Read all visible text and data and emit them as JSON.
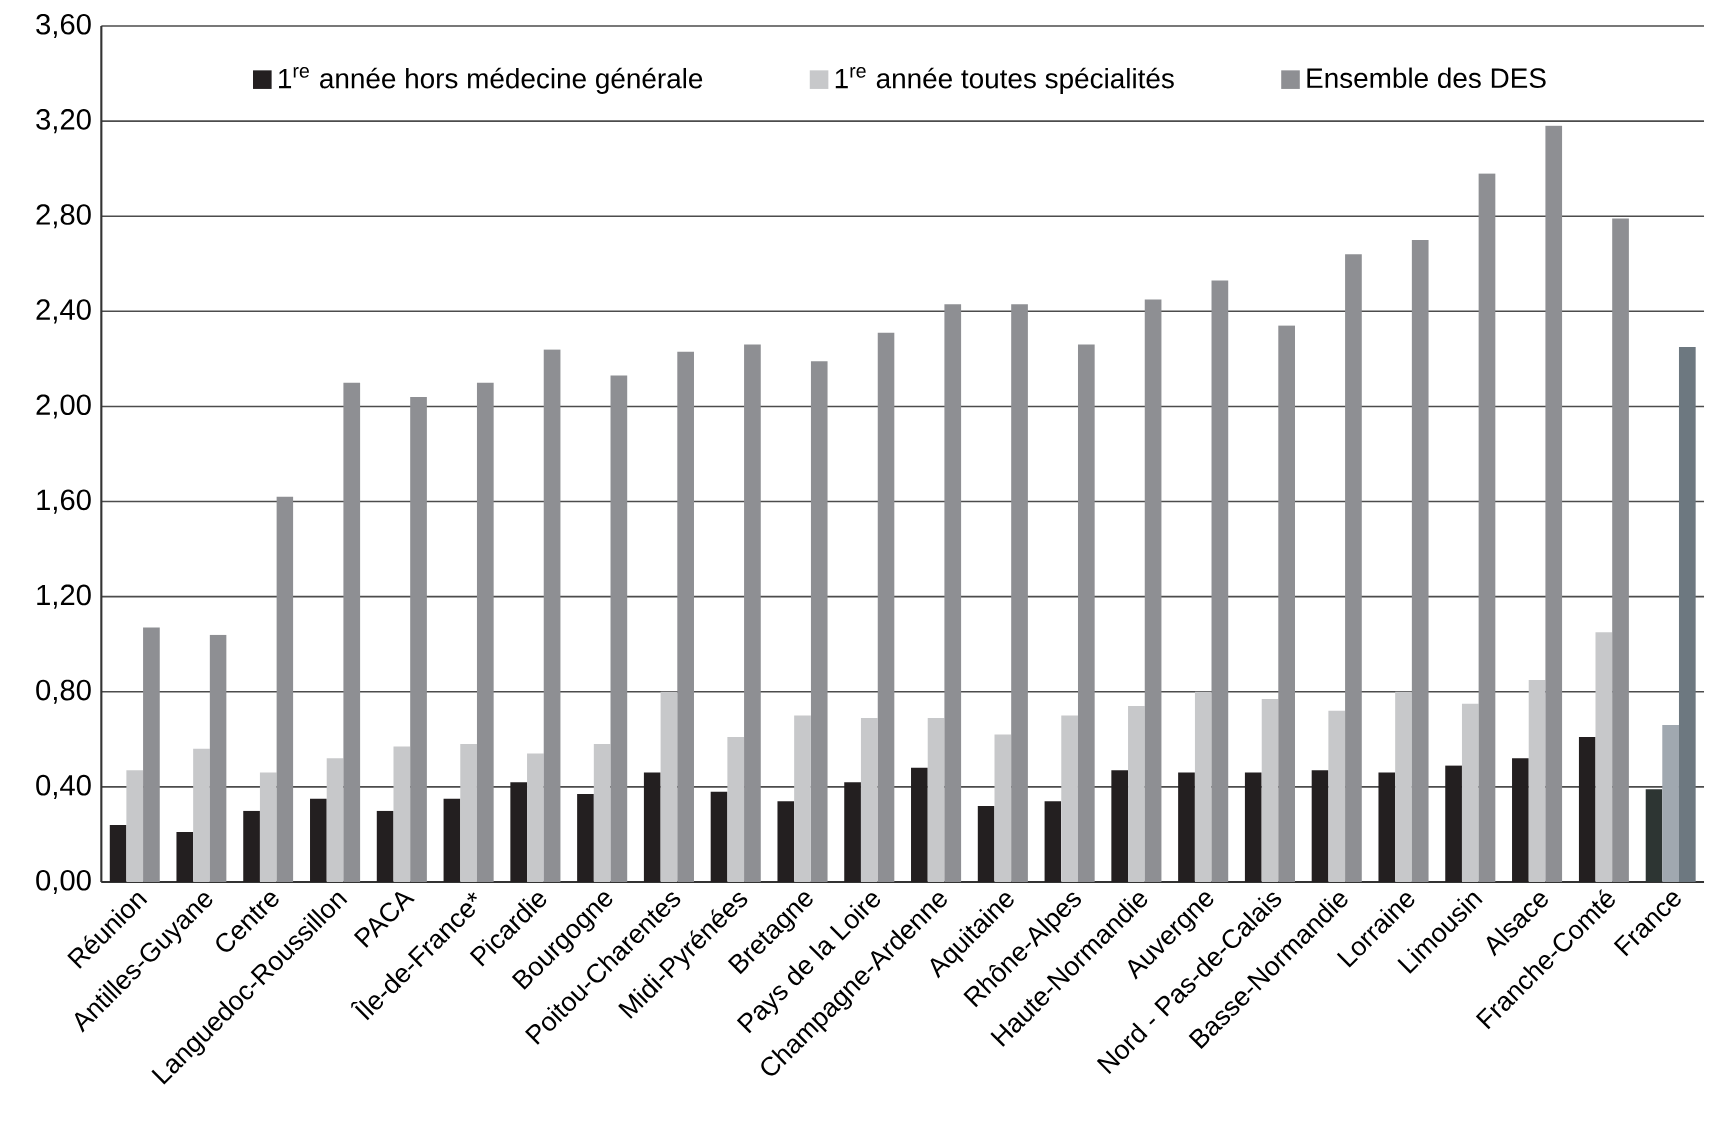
{
  "chart_data": {
    "type": "bar",
    "categories": [
      "Réunion",
      "Antilles-Guyane",
      "Centre",
      "Languedoc-Roussillon",
      "PACA",
      "Île-de-France*",
      "Picardie",
      "Bourgogne",
      "Poitou-Charentes",
      "Midi-Pyrénées",
      "Bretagne",
      "Pays de la Loire",
      "Champagne-Ardenne",
      "Aquitaine",
      "Rhône-Alpes",
      "Haute-Normandie",
      "Auvergne",
      "Nord - Pas-de-Calais",
      "Basse-Normandie",
      "Lorraine",
      "Limousin",
      "Alsace",
      "Franche-Comté",
      "France"
    ],
    "series": [
      {
        "name": "1$^{re}$ année hors médecine générale",
        "color": "#231f20",
        "colors": [
          "#231f20",
          "#231f20",
          "#231f20",
          "#231f20",
          "#231f20",
          "#231f20",
          "#231f20",
          "#231f20",
          "#231f20",
          "#231f20",
          "#231f20",
          "#231f20",
          "#231f20",
          "#231f20",
          "#231f20",
          "#231f20",
          "#231f20",
          "#231f20",
          "#231f20",
          "#231f20",
          "#231f20",
          "#231f20",
          "#231f20",
          "#2d3533"
        ],
        "values": [
          0.24,
          0.21,
          0.3,
          0.35,
          0.3,
          0.35,
          0.42,
          0.37,
          0.46,
          0.38,
          0.34,
          0.42,
          0.48,
          0.32,
          0.34,
          0.47,
          0.46,
          0.46,
          0.47,
          0.46,
          0.49,
          0.52,
          0.61,
          0.39
        ]
      },
      {
        "name": "1$^{re}$ année toutes spécialités",
        "color": "#c7c8ca",
        "colors": [
          "#c7c8ca",
          "#c7c8ca",
          "#c7c8ca",
          "#c7c8ca",
          "#c7c8ca",
          "#c7c8ca",
          "#c7c8ca",
          "#c7c8ca",
          "#c7c8ca",
          "#c7c8ca",
          "#c7c8ca",
          "#c7c8ca",
          "#c7c8ca",
          "#c7c8ca",
          "#c7c8ca",
          "#c7c8ca",
          "#c7c8ca",
          "#c7c8ca",
          "#c7c8ca",
          "#c7c8ca",
          "#c7c8ca",
          "#c7c8ca",
          "#c7c8ca",
          "#a0a8b0"
        ],
        "values": [
          0.47,
          0.56,
          0.46,
          0.52,
          0.57,
          0.58,
          0.54,
          0.58,
          0.8,
          0.61,
          0.7,
          0.69,
          0.69,
          0.62,
          0.7,
          0.74,
          0.8,
          0.77,
          0.72,
          0.8,
          0.75,
          0.85,
          1.05,
          0.66
        ]
      },
      {
        "name": "Ensemble des DES",
        "color": "#8e8f93",
        "colors": [
          "#8e8f93",
          "#8e8f93",
          "#8e8f93",
          "#8e8f93",
          "#8e8f93",
          "#8e8f93",
          "#8e8f93",
          "#8e8f93",
          "#8e8f93",
          "#8e8f93",
          "#8e8f93",
          "#8e8f93",
          "#8e8f93",
          "#8e8f93",
          "#8e8f93",
          "#8e8f93",
          "#8e8f93",
          "#8e8f93",
          "#8e8f93",
          "#8e8f93",
          "#8e8f93",
          "#8e8f93",
          "#8e8f93",
          "#6d7880"
        ],
        "values": [
          1.07,
          1.04,
          1.62,
          2.1,
          2.04,
          2.1,
          2.24,
          2.13,
          2.23,
          2.26,
          2.19,
          2.31,
          2.43,
          2.43,
          2.26,
          2.45,
          2.53,
          2.34,
          2.64,
          2.7,
          2.98,
          3.18,
          2.79,
          2.25
        ]
      }
    ],
    "ylim": [
      0,
      3.6
    ],
    "yticks": [
      {
        "value": 0,
        "label": "0,00"
      },
      {
        "value": 0.4,
        "label": "0,40"
      },
      {
        "value": 0.8,
        "label": "0,80"
      },
      {
        "value": 1.2,
        "label": "1,20"
      },
      {
        "value": 1.6,
        "label": "1,60"
      },
      {
        "value": 2.0,
        "label": "2,00"
      },
      {
        "value": 2.4,
        "label": "2,40"
      },
      {
        "value": 2.8,
        "label": "2,80"
      },
      {
        "value": 3.2,
        "label": "3,20"
      },
      {
        "value": 3.6,
        "label": "3,60"
      }
    ],
    "grid": "y",
    "legend": "top"
  }
}
